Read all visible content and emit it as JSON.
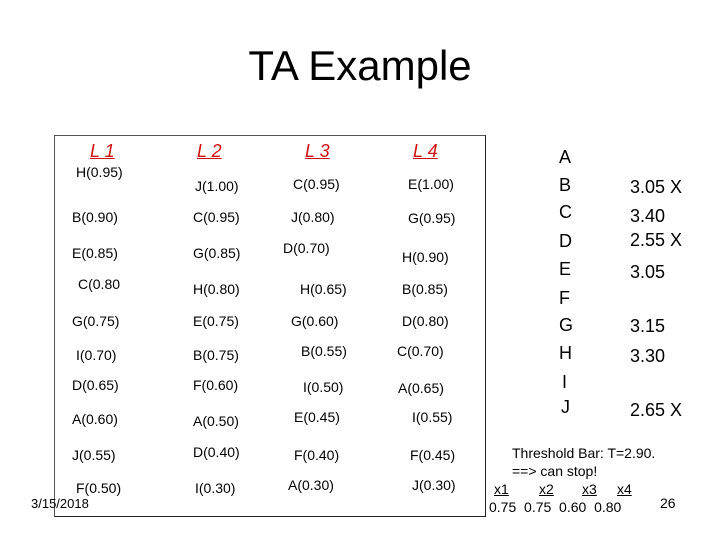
{
  "title": "TA Example",
  "lists": {
    "headers": [
      "L 1",
      "L 2",
      "L 3",
      "L 4"
    ],
    "columns": [
      [
        "H(0.95)",
        "B(0.90)",
        "E(0.85)",
        "C(0.80",
        "G(0.75)",
        "I(0.70)",
        "D(0.65)",
        "A(0.60)",
        "J(0.55)",
        "F(0.50)"
      ],
      [
        "J(1.00)",
        "C(0.95)",
        "G(0.85)",
        "H(0.80)",
        "E(0.75)",
        "B(0.75)",
        "F(0.60)",
        "A(0.50)",
        "D(0.40)",
        "I(0.30)"
      ],
      [
        "C(0.95)",
        "J(0.80)",
        "D(0.70)",
        "H(0.65)",
        "G(0.60)",
        "B(0.55)",
        "I(0.50)",
        "E(0.45)",
        "F(0.40)",
        "A(0.30)"
      ],
      [
        "E(1.00)",
        "G(0.95)",
        "H(0.90)",
        "B(0.85)",
        "D(0.80)",
        "C(0.70)",
        "A(0.65)",
        "I(0.55)",
        "F(0.45)",
        "J(0.30)"
      ]
    ]
  },
  "scores": [
    {
      "item": "A",
      "score": ""
    },
    {
      "item": "B",
      "score": "3.05 X"
    },
    {
      "item": "C",
      "score": "3.40"
    },
    {
      "item": "D",
      "score": "2.55 X"
    },
    {
      "item": "E",
      "score": "3.05"
    },
    {
      "item": "F",
      "score": ""
    },
    {
      "item": "G",
      "score": "3.15"
    },
    {
      "item": "H",
      "score": "3.30"
    },
    {
      "item": "I",
      "score": ""
    },
    {
      "item": "J",
      "score": "2.65 X"
    }
  ],
  "threshold": {
    "line1": "Threshold Bar: T=2.90.",
    "line2": "==> can stop!",
    "vars": [
      "x1",
      "x2",
      "x3",
      "x4"
    ],
    "values": "0.75  0.75  0.60  0.80"
  },
  "footer": {
    "date": "3/15/2018",
    "page": "26"
  }
}
